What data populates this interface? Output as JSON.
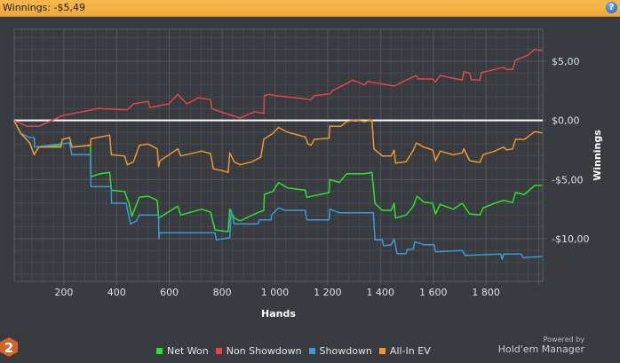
{
  "header": {
    "title": "Winnings: -$5,49",
    "help_icon": "help-icon"
  },
  "branding": {
    "powered_by": "Powered by",
    "product": "Hold'em Manager",
    "logo_text": "2"
  },
  "colors": {
    "net_won": "#2ee02e",
    "non_showdown": "#e04848",
    "showdown": "#3a9ad9",
    "all_in_ev": "#f0962e",
    "zero_line": "#ffffff",
    "header": "#f5b04a"
  },
  "chart_data": {
    "type": "line",
    "title": "",
    "xlabel": "Hands",
    "ylabel": "Winnings",
    "xlim": [
      12,
      2015
    ],
    "ylim": [
      -13.6,
      7.7
    ],
    "grid": true,
    "legend_position": "bottom",
    "x_ticks": [
      200,
      400,
      600,
      800,
      1000,
      1200,
      1400,
      1600,
      1800
    ],
    "x_tick_labels": [
      "200",
      "400",
      "600",
      "800",
      "1 000",
      "1 200",
      "1 400",
      "1 600",
      "1 800"
    ],
    "y_ticks": [
      5,
      0,
      -5,
      -10
    ],
    "y_tick_labels": [
      "$5,00",
      "$0,00",
      "-$5,00",
      "-$10,00"
    ],
    "series": [
      {
        "name": "Net Won",
        "color": "#2ee02e",
        "points": [
          [
            11,
            0
          ],
          [
            37,
            -1.1
          ],
          [
            71,
            -1.9
          ],
          [
            88,
            -2.9
          ],
          [
            105,
            -2.25
          ],
          [
            189,
            -2.1
          ],
          [
            194,
            -1.6
          ],
          [
            222,
            -1.45
          ],
          [
            230,
            -2.25
          ],
          [
            301,
            -2.1
          ],
          [
            303,
            -4.75
          ],
          [
            340,
            -4.5
          ],
          [
            374,
            -4.4
          ],
          [
            380,
            -5.9
          ],
          [
            430,
            -6.0
          ],
          [
            447,
            -7.0
          ],
          [
            458,
            -8.1
          ],
          [
            486,
            -6.5
          ],
          [
            520,
            -6.4
          ],
          [
            554,
            -6.75
          ],
          [
            559,
            -8.25
          ],
          [
            632,
            -7.25
          ],
          [
            643,
            -8.0
          ],
          [
            722,
            -7.5
          ],
          [
            756,
            -7.75
          ],
          [
            773,
            -9.25
          ],
          [
            823,
            -9.4
          ],
          [
            829,
            -7.5
          ],
          [
            846,
            -8.25
          ],
          [
            868,
            -8.5
          ],
          [
            924,
            -7.9
          ],
          [
            958,
            -7.6
          ],
          [
            960,
            -6.25
          ],
          [
            992,
            -6.0
          ],
          [
            1014,
            -5.25
          ],
          [
            1048,
            -5.7
          ],
          [
            1115,
            -5.9
          ],
          [
            1121,
            -6.5
          ],
          [
            1205,
            -6.1
          ],
          [
            1208,
            -5.0
          ],
          [
            1244,
            -5.25
          ],
          [
            1272,
            -4.5
          ],
          [
            1340,
            -4.5
          ],
          [
            1368,
            -4.4
          ],
          [
            1379,
            -7.0
          ],
          [
            1407,
            -7.6
          ],
          [
            1441,
            -7.6
          ],
          [
            1452,
            -7.0
          ],
          [
            1457,
            -8.25
          ],
          [
            1497,
            -8.0
          ],
          [
            1525,
            -7.25
          ],
          [
            1539,
            -6.4
          ],
          [
            1564,
            -6.9
          ],
          [
            1598,
            -7.0
          ],
          [
            1609,
            -7.9
          ],
          [
            1626,
            -7.1
          ],
          [
            1676,
            -7.5
          ],
          [
            1710,
            -7.0
          ],
          [
            1738,
            -7.9
          ],
          [
            1777,
            -8.0
          ],
          [
            1789,
            -7.4
          ],
          [
            1833,
            -7.0
          ],
          [
            1867,
            -6.75
          ],
          [
            1901,
            -6.95
          ],
          [
            1912,
            -6.1
          ],
          [
            1946,
            -6.25
          ],
          [
            1985,
            -5.5
          ],
          [
            2013,
            -5.49
          ]
        ]
      },
      {
        "name": "Non Showdown",
        "color": "#e04848",
        "points": [
          [
            11,
            0
          ],
          [
            60,
            -0.5
          ],
          [
            105,
            -0.5
          ],
          [
            194,
            0.4
          ],
          [
            273,
            0.75
          ],
          [
            329,
            1.0
          ],
          [
            441,
            0.9
          ],
          [
            464,
            1.4
          ],
          [
            520,
            1.6
          ],
          [
            526,
            1.1
          ],
          [
            599,
            1.4
          ],
          [
            632,
            2.2
          ],
          [
            666,
            1.4
          ],
          [
            711,
            1.9
          ],
          [
            756,
            1.75
          ],
          [
            761,
            1.0
          ],
          [
            812,
            0.6
          ],
          [
            868,
            0.2
          ],
          [
            924,
            0.75
          ],
          [
            958,
            0.6
          ],
          [
            960,
            2.1
          ],
          [
            980,
            2.2
          ],
          [
            1003,
            2.1
          ],
          [
            1137,
            1.75
          ],
          [
            1149,
            2.1
          ],
          [
            1210,
            2.25
          ],
          [
            1216,
            2.5
          ],
          [
            1261,
            3.0
          ],
          [
            1295,
            3.4
          ],
          [
            1340,
            3.0
          ],
          [
            1351,
            3.3
          ],
          [
            1452,
            2.9
          ],
          [
            1497,
            3.4
          ],
          [
            1536,
            3.8
          ],
          [
            1542,
            3.5
          ],
          [
            1598,
            3.5
          ],
          [
            1609,
            3.25
          ],
          [
            1626,
            3.8
          ],
          [
            1710,
            3.4
          ],
          [
            1716,
            4.1
          ],
          [
            1738,
            4.0
          ],
          [
            1744,
            3.45
          ],
          [
            1777,
            3.4
          ],
          [
            1783,
            4.05
          ],
          [
            1833,
            4.3
          ],
          [
            1867,
            4.5
          ],
          [
            1878,
            4.3
          ],
          [
            1901,
            4.3
          ],
          [
            1912,
            5.1
          ],
          [
            1957,
            5.5
          ],
          [
            1985,
            6.0
          ],
          [
            2013,
            5.9
          ]
        ]
      },
      {
        "name": "Showdown",
        "color": "#3a9ad9",
        "points": [
          [
            11,
            0
          ],
          [
            37,
            -1.1
          ],
          [
            71,
            -1.45
          ],
          [
            88,
            -1.45
          ],
          [
            89,
            -2.25
          ],
          [
            222,
            -1.9
          ],
          [
            230,
            -2.9
          ],
          [
            301,
            -2.9
          ],
          [
            303,
            -5.6
          ],
          [
            380,
            -5.6
          ],
          [
            381,
            -7.0
          ],
          [
            436,
            -7.0
          ],
          [
            453,
            -8.75
          ],
          [
            475,
            -8.5
          ],
          [
            486,
            -8.0
          ],
          [
            559,
            -8.0
          ],
          [
            560,
            -10.0
          ],
          [
            563,
            -9.5
          ],
          [
            773,
            -9.5
          ],
          [
            778,
            -10.1
          ],
          [
            829,
            -9.9
          ],
          [
            834,
            -7.6
          ],
          [
            846,
            -8.75
          ],
          [
            935,
            -8.75
          ],
          [
            941,
            -8.4
          ],
          [
            986,
            -8.4
          ],
          [
            987,
            -8.0
          ],
          [
            1014,
            -7.4
          ],
          [
            1040,
            -7.6
          ],
          [
            1115,
            -7.6
          ],
          [
            1121,
            -8.4
          ],
          [
            1205,
            -8.4
          ],
          [
            1208,
            -7.5
          ],
          [
            1244,
            -7.8
          ],
          [
            1373,
            -7.8
          ],
          [
            1379,
            -10.1
          ],
          [
            1407,
            -10.1
          ],
          [
            1412,
            -10.6
          ],
          [
            1441,
            -10.5
          ],
          [
            1452,
            -10.0
          ],
          [
            1463,
            -11.25
          ],
          [
            1497,
            -11.25
          ],
          [
            1502,
            -10.9
          ],
          [
            1525,
            -10.9
          ],
          [
            1530,
            -10.25
          ],
          [
            1564,
            -10.5
          ],
          [
            1603,
            -10.5
          ],
          [
            1609,
            -11.1
          ],
          [
            1710,
            -11.0
          ],
          [
            1721,
            -11.4
          ],
          [
            1856,
            -11.3
          ],
          [
            1861,
            -11.75
          ],
          [
            1867,
            -11.3
          ],
          [
            1934,
            -11.3
          ],
          [
            1940,
            -11.6
          ],
          [
            2013,
            -11.5
          ]
        ]
      },
      {
        "name": "All-In EV",
        "color": "#f0962e",
        "points": [
          [
            11,
            0
          ],
          [
            37,
            -1.1
          ],
          [
            71,
            -1.9
          ],
          [
            88,
            -2.9
          ],
          [
            105,
            -2.25
          ],
          [
            189,
            -2.25
          ],
          [
            194,
            -1.6
          ],
          [
            222,
            -1.45
          ],
          [
            230,
            -2.25
          ],
          [
            301,
            -2.1
          ],
          [
            303,
            -1.55
          ],
          [
            340,
            -1.4
          ],
          [
            374,
            -1.25
          ],
          [
            380,
            -2.9
          ],
          [
            430,
            -3.0
          ],
          [
            441,
            -3.75
          ],
          [
            464,
            -3.5
          ],
          [
            486,
            -2.1
          ],
          [
            520,
            -2.0
          ],
          [
            554,
            -2.4
          ],
          [
            559,
            -3.9
          ],
          [
            565,
            -3.4
          ],
          [
            632,
            -2.4
          ],
          [
            643,
            -3.0
          ],
          [
            722,
            -2.6
          ],
          [
            756,
            -2.8
          ],
          [
            767,
            -4.1
          ],
          [
            801,
            -4.25
          ],
          [
            823,
            -4.4
          ],
          [
            829,
            -2.75
          ],
          [
            846,
            -3.5
          ],
          [
            868,
            -3.75
          ],
          [
            913,
            -3.5
          ],
          [
            947,
            -3.1
          ],
          [
            958,
            -1.6
          ],
          [
            992,
            -1.1
          ],
          [
            1014,
            -0.6
          ],
          [
            1048,
            -1.0
          ],
          [
            1115,
            -1.4
          ],
          [
            1126,
            -2.0
          ],
          [
            1137,
            -2.1
          ],
          [
            1149,
            -1.6
          ],
          [
            1205,
            -1.5
          ],
          [
            1208,
            -0.5
          ],
          [
            1250,
            -0.5
          ],
          [
            1272,
            -0.1
          ],
          [
            1306,
            0.05
          ],
          [
            1340,
            -0.1
          ],
          [
            1368,
            0.05
          ],
          [
            1375,
            -2.4
          ],
          [
            1407,
            -3.0
          ],
          [
            1441,
            -3.0
          ],
          [
            1452,
            -2.5
          ],
          [
            1457,
            -3.6
          ],
          [
            1497,
            -3.5
          ],
          [
            1525,
            -2.5
          ],
          [
            1536,
            -1.9
          ],
          [
            1564,
            -2.25
          ],
          [
            1598,
            -2.5
          ],
          [
            1609,
            -3.4
          ],
          [
            1626,
            -2.6
          ],
          [
            1676,
            -2.9
          ],
          [
            1710,
            -2.75
          ],
          [
            1716,
            -2.4
          ],
          [
            1738,
            -3.4
          ],
          [
            1777,
            -3.55
          ],
          [
            1789,
            -2.9
          ],
          [
            1833,
            -2.6
          ],
          [
            1867,
            -2.25
          ],
          [
            1878,
            -2.5
          ],
          [
            1901,
            -2.4
          ],
          [
            1912,
            -1.6
          ],
          [
            1946,
            -1.6
          ],
          [
            1985,
            -0.95
          ],
          [
            2013,
            -1.05
          ]
        ]
      }
    ]
  }
}
